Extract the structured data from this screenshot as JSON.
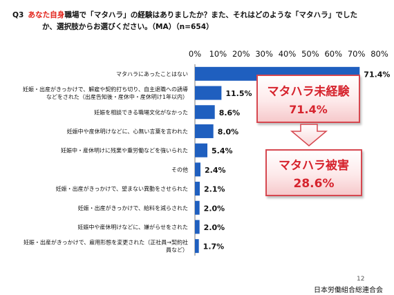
{
  "header": {
    "qnum": "Q3",
    "highlight": "あなた自身",
    "line1_rest": "職場で「マタハラ」の経験はありましたか？また、それはどのような「マタハラ」でした",
    "line2": "か、選択肢からお選びください。（MA）（n=654）"
  },
  "chart_data": {
    "type": "bar",
    "orientation": "horizontal",
    "title": "",
    "xlabel": "",
    "ylabel": "",
    "xlim": [
      0,
      80
    ],
    "x_ticks": [
      "0%",
      "10%",
      "20%",
      "30%",
      "40%",
      "50%",
      "60%",
      "70%",
      "80%"
    ],
    "grid": false,
    "bar_color": "#1f5fbf",
    "categories": [
      [
        "マタハラにあったことはない"
      ],
      [
        "妊娠・出産がきっかけで、解雇や契約打ち切り、自主退職への誘導",
        "などをされた（出産告知後・産休中・産休明け1年以内）"
      ],
      [
        "妊娠を相談できる職場文化がなかった"
      ],
      [
        "妊娠中や産休明けなどに、心無い言葉を言われた"
      ],
      [
        "妊娠中・産休明けに残業や重労働などを強いられた"
      ],
      [
        "その他"
      ],
      [
        "妊娠・出産がきっかけで、望まない異動をさせられた"
      ],
      [
        "妊娠・出産がきっかけで、給料を減らされた"
      ],
      [
        "妊娠中や産休明けなどに、嫌がらせをされた"
      ],
      [
        "妊娠・出産がきっかけで、雇用形態を変更された（正社員→契約社",
        "員など）"
      ]
    ],
    "values": [
      71.4,
      11.5,
      8.6,
      8.0,
      5.4,
      2.4,
      2.1,
      2.0,
      2.0,
      1.7
    ],
    "value_labels": [
      "71.4%",
      "11.5%",
      "8.6%",
      "8.0%",
      "5.4%",
      "2.4%",
      "2.1%",
      "2.0%",
      "2.0%",
      "1.7%"
    ]
  },
  "callouts": {
    "no_harassment_label": "マタハラ未経験",
    "no_harassment_value": "71.4%",
    "harassment_label": "マタハラ被害",
    "harassment_value": "28.6%"
  },
  "page_number": "12",
  "organization": "日本労働組合総連合会"
}
